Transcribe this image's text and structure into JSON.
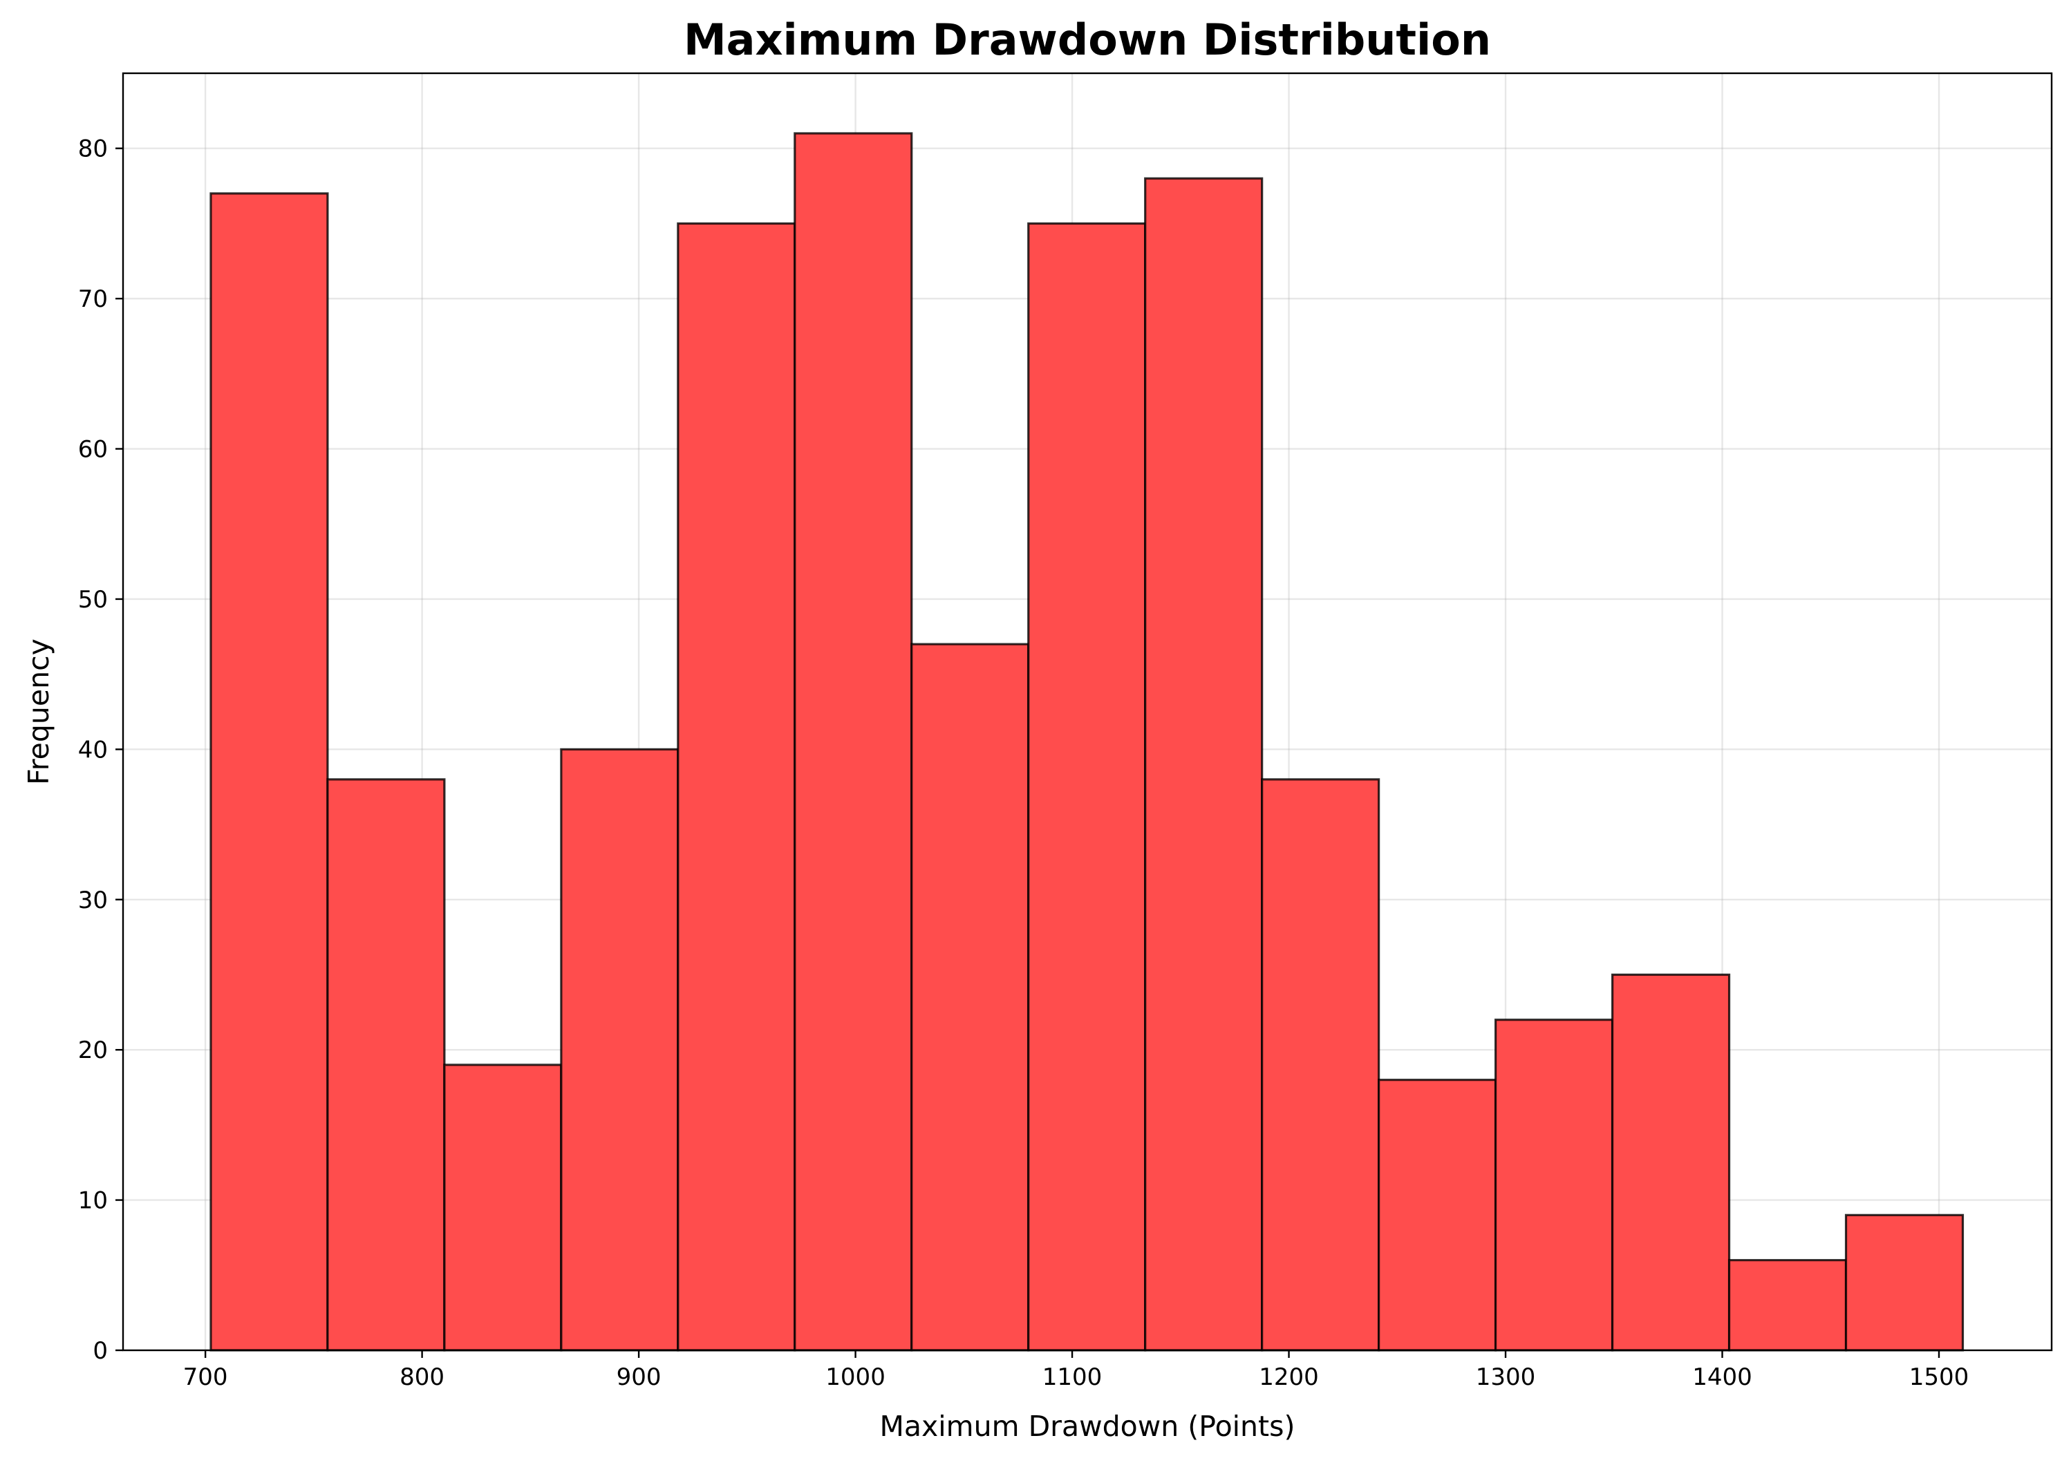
{
  "chart_data": {
    "type": "bar",
    "title": "Maximum Drawdown Distribution",
    "xlabel": "Maximum Drawdown (Points)",
    "ylabel": "Frequency",
    "bin_edges": [
      702.5,
      756.4,
      810.3,
      864.2,
      918.1,
      972.0,
      1025.9,
      1079.8,
      1133.7,
      1187.6,
      1241.5,
      1295.4,
      1349.3,
      1403.2,
      1457.1,
      1511.0
    ],
    "values": [
      77,
      38,
      19,
      40,
      75,
      81,
      47,
      75,
      78,
      38,
      18,
      22,
      25,
      6,
      9
    ],
    "xlim": [
      662,
      1552
    ],
    "ylim": [
      0,
      85
    ],
    "xticks": [
      700,
      800,
      900,
      1000,
      1100,
      1200,
      1300,
      1400,
      1500
    ],
    "yticks": [
      0,
      10,
      20,
      30,
      40,
      50,
      60,
      70,
      80
    ],
    "grid": true,
    "bar_color": "#ff4d4d",
    "edge_color": "#000000"
  }
}
